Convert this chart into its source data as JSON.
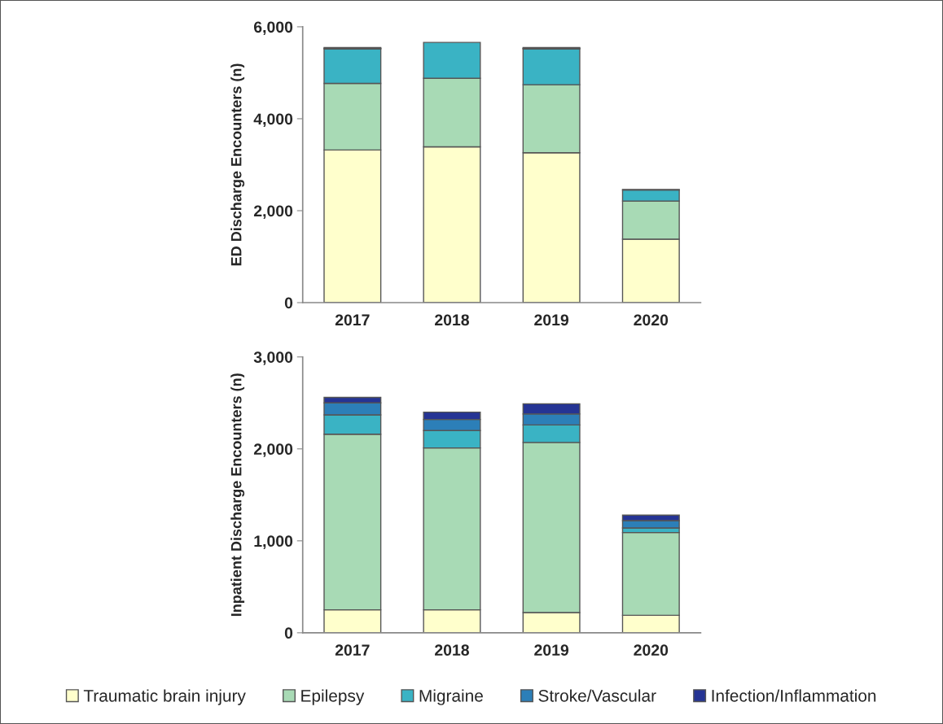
{
  "chart_data": [
    {
      "type": "bar",
      "stacked": true,
      "ylabel": "ED Discharge Encounters (n)",
      "categories": [
        "2017",
        "2018",
        "2019",
        "2020"
      ],
      "ylim": [
        0,
        6000
      ],
      "yticks": [
        {
          "value": 0,
          "label": "0"
        },
        {
          "value": 2000,
          "label": "2,000"
        },
        {
          "value": 4000,
          "label": "4,000"
        },
        {
          "value": 6000,
          "label": "6,000"
        }
      ],
      "grid": false,
      "legend": "bottom",
      "series": [
        {
          "name": "Traumatic brain injury",
          "color": "#ffffcc",
          "values": [
            3320,
            3390,
            3260,
            1380
          ]
        },
        {
          "name": "Epilepsy",
          "color": "#a8dab5",
          "values": [
            1450,
            1490,
            1480,
            830
          ]
        },
        {
          "name": "Migraine",
          "color": "#3ab3c4",
          "values": [
            750,
            780,
            780,
            240
          ]
        },
        {
          "name": "Stroke/Vascular",
          "color": "#2c7fb8",
          "values": [
            10,
            null,
            10,
            null
          ]
        },
        {
          "name": "Infection/Inflammation",
          "color": "#253494",
          "values": [
            20,
            null,
            20,
            10
          ]
        }
      ]
    },
    {
      "type": "bar",
      "stacked": true,
      "ylabel": "Inpatient Discharge Encounters (n)",
      "categories": [
        "2017",
        "2018",
        "2019",
        "2020"
      ],
      "ylim": [
        0,
        3000
      ],
      "yticks": [
        {
          "value": 0,
          "label": "0"
        },
        {
          "value": 1000,
          "label": "1,000"
        },
        {
          "value": 2000,
          "label": "2,000"
        },
        {
          "value": 3000,
          "label": "3,000"
        }
      ],
      "grid": false,
      "series": [
        {
          "color": "#ffffcc",
          "values": [
            250,
            250,
            220,
            190
          ]
        },
        {
          "color": "#a8dab5",
          "values": [
            1910,
            1760,
            1850,
            900
          ]
        },
        {
          "color": "#3ab3c4",
          "values": [
            210,
            190,
            190,
            50
          ]
        },
        {
          "color": "#2c7fb8",
          "values": [
            130,
            120,
            120,
            80
          ]
        },
        {
          "color": "#253494",
          "values": [
            60,
            80,
            110,
            60
          ]
        }
      ]
    }
  ]
}
